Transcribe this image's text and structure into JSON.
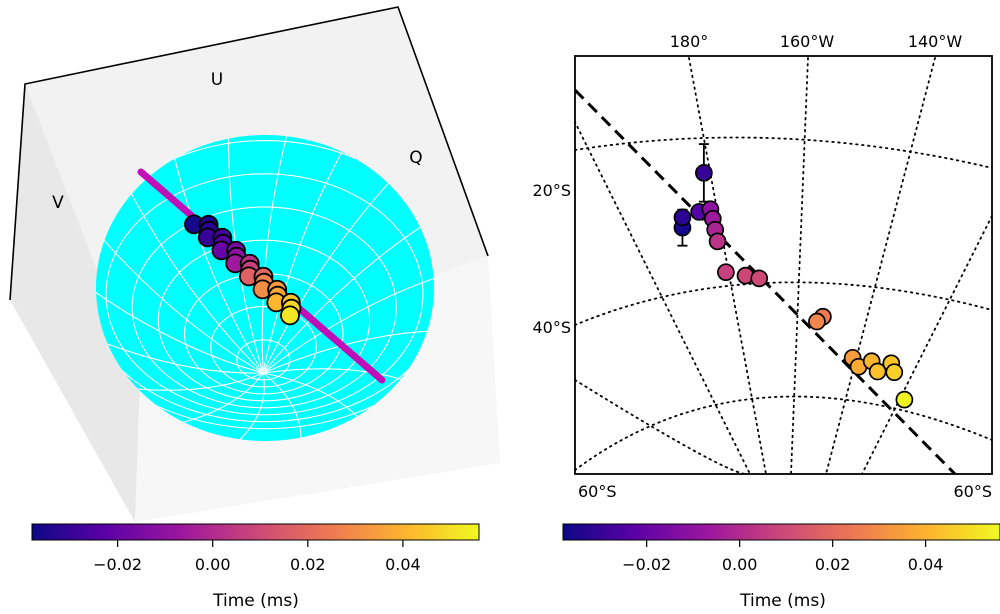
{
  "colors": {
    "sphere": "#00ffff",
    "stokes_track": "#c10fb7",
    "colormap": [
      "#0d0887",
      "#5c01a6",
      "#9c179e",
      "#cc4778",
      "#ed7953",
      "#fdb42f",
      "#f0f921"
    ]
  },
  "chart_data": [
    {
      "type": "scatter",
      "projection": "poincare-sphere-3d",
      "axis_labels": {
        "u": "U",
        "q": "Q",
        "v": "V"
      },
      "fit_line": true,
      "colorbar": {
        "label": "Time (ms)",
        "ticks": [
          "−0.02",
          "0.00",
          "0.02",
          "0.04"
        ],
        "tick_values": [
          -0.02,
          0.0,
          0.02,
          0.04
        ],
        "range": [
          -0.038,
          0.056
        ]
      },
      "points_t": [
        -0.036,
        -0.034,
        -0.032,
        -0.03,
        -0.027,
        -0.024,
        -0.02,
        -0.015,
        -0.01,
        -0.006,
        0.002,
        0.007,
        0.017,
        0.019,
        0.027,
        0.03,
        0.034,
        0.037,
        0.041,
        0.044,
        0.048,
        0.052
      ]
    },
    {
      "type": "scatter",
      "projection": "stereographic-map",
      "lon_labels": [
        "180°",
        "160°W",
        "140°W"
      ],
      "lat_labels": [
        "20°S",
        "40°S"
      ],
      "bottom_labels": [
        "60°S",
        "60°S"
      ],
      "lon_values": [
        180,
        -160,
        -140
      ],
      "lat_values": [
        -20,
        -40,
        -60
      ],
      "grid": true,
      "fit_line": true,
      "colorbar": {
        "label": "Time (ms)",
        "ticks": [
          "−0.02",
          "0.00",
          "0.02",
          "0.04"
        ],
        "tick_values": [
          -0.02,
          0.0,
          0.02,
          0.04
        ],
        "range": [
          -0.038,
          0.056
        ]
      },
      "points": [
        {
          "lon": -177.5,
          "lat": -17.5,
          "t": -0.03
        },
        {
          "lon": 178.9,
          "lat": -25.5,
          "t": -0.036
        },
        {
          "lon": 178.9,
          "lat": -24.0,
          "t": -0.032
        },
        {
          "lon": -178.3,
          "lat": -23.2,
          "t": -0.024
        },
        {
          "lon": -176.4,
          "lat": -22.8,
          "t": -0.01
        },
        {
          "lon": -176.0,
          "lat": -24.2,
          "t": -0.006
        },
        {
          "lon": -175.6,
          "lat": -25.8,
          "t": -0.002
        },
        {
          "lon": -175.2,
          "lat": -27.5,
          "t": 0.003
        },
        {
          "lon": -173.8,
          "lat": -32.0,
          "t": 0.007
        },
        {
          "lon": -170.5,
          "lat": -32.5,
          "t": 0.009
        },
        {
          "lon": -168.2,
          "lat": -32.9,
          "t": 0.01
        },
        {
          "lon": -157.5,
          "lat": -38.5,
          "t": 0.025
        },
        {
          "lon": -158.5,
          "lat": -39.2,
          "t": 0.028
        },
        {
          "lon": -152.5,
          "lat": -44.5,
          "t": 0.034
        },
        {
          "lon": -151.5,
          "lat": -45.8,
          "t": 0.038
        },
        {
          "lon": -149.3,
          "lat": -45.0,
          "t": 0.04
        },
        {
          "lon": -148.3,
          "lat": -46.5,
          "t": 0.043
        },
        {
          "lon": -146.0,
          "lat": -45.3,
          "t": 0.044
        },
        {
          "lon": -145.5,
          "lat": -46.6,
          "t": 0.047
        },
        {
          "lon": -143.8,
          "lat": -50.6,
          "t": 0.055
        }
      ],
      "error_bars_lat": [
        7.2,
        4.5,
        1.8
      ]
    }
  ],
  "colorbars": [
    {
      "label": "Time (ms)",
      "ticks": [
        "−0.02",
        "0.00",
        "0.02",
        "0.04"
      ]
    },
    {
      "label": "Time (ms)",
      "ticks": [
        "−0.02",
        "0.00",
        "0.02",
        "0.04"
      ]
    }
  ]
}
